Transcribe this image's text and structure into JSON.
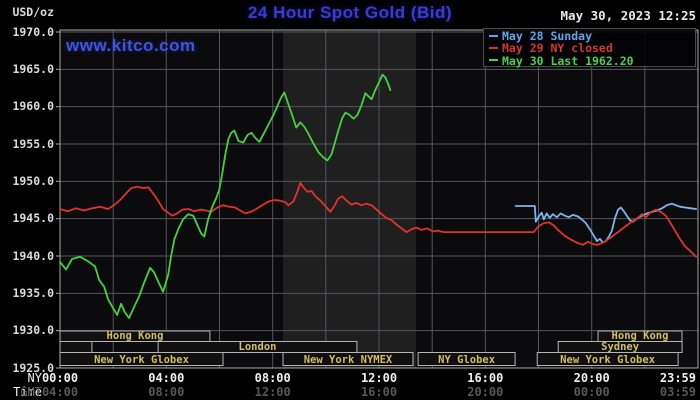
{
  "header": {
    "unit_label": "USD/oz",
    "title": "24 Hour Spot Gold (Bid)",
    "datetime": "May 30, 2023 12:25",
    "watermark": "www.kitco.com"
  },
  "legend": {
    "items": [
      {
        "label": "May 28 Sunday",
        "color": "#5ea6ec"
      },
      {
        "label": "May 29 NY closed",
        "color": "#d2382c"
      },
      {
        "label": "May 30 Last 1962.20",
        "color": "#4cd04c"
      }
    ]
  },
  "axis": {
    "ny_label": "NY Time",
    "gmt_label": "GMT",
    "x_ticks": [
      {
        "h": 0,
        "ny": "00:00",
        "gmt": "04:00"
      },
      {
        "h": 4,
        "ny": "04:00",
        "gmt": "08:00"
      },
      {
        "h": 8,
        "ny": "08:00",
        "gmt": "12:00"
      },
      {
        "h": 12,
        "ny": "12:00",
        "gmt": "16:00"
      },
      {
        "h": 16,
        "ny": "16:00",
        "gmt": "20:00"
      },
      {
        "h": 20,
        "ny": "20:00",
        "gmt": "00:00"
      },
      {
        "h": 23.983,
        "ny": "23:59",
        "gmt": "03:59"
      }
    ]
  },
  "sessions": {
    "rows": [
      [
        {
          "label": "Hong Kong",
          "from": 0,
          "to": 5.64
        },
        {
          "label": "Hong Kong",
          "from": 20.24,
          "to": 23.4
        }
      ],
      [
        {
          "label": "",
          "from": 0,
          "to": 1.2
        },
        {
          "label": "London",
          "from": 3.69,
          "to": 11.17
        },
        {
          "label": "Sydney",
          "from": 18.74,
          "to": 23.4
        }
      ],
      [
        {
          "label": "New York Globex",
          "from": 0,
          "to": 6.13
        },
        {
          "label": "New York NYMEX",
          "from": 8.39,
          "to": 13.28
        },
        {
          "label": "NY Globex",
          "from": 13.47,
          "to": 17.12
        },
        {
          "label": "New York Globex",
          "from": 17.95,
          "to": 23.25
        }
      ]
    ]
  },
  "chart_data": {
    "type": "line",
    "title": "24 Hour Spot Gold (Bid)",
    "ylabel": "USD/oz",
    "ylim": [
      1925,
      1970
    ],
    "xlim_hours": [
      0,
      24
    ],
    "grid": true,
    "legend_position": "top-right",
    "y_ticks": [
      1970,
      1965,
      1960,
      1955,
      1950,
      1945,
      1940,
      1935,
      1930,
      1925
    ],
    "grid_hours": [
      2,
      4,
      6,
      8,
      10,
      12,
      14,
      16,
      18,
      20,
      22
    ],
    "nymex_shade_hours": [
      8.39,
      13.4
    ],
    "series": [
      {
        "name": "May 28 Sunday",
        "color": "#79b6ef",
        "points": [
          [
            17.14,
            1946.7
          ],
          [
            17.86,
            1946.7
          ],
          [
            17.9,
            1944.6
          ],
          [
            18.01,
            1945.3
          ],
          [
            18.12,
            1945.8
          ],
          [
            18.2,
            1944.9
          ],
          [
            18.31,
            1945.7
          ],
          [
            18.42,
            1945.1
          ],
          [
            18.54,
            1945.6
          ],
          [
            18.69,
            1945.2
          ],
          [
            18.84,
            1945.7
          ],
          [
            18.99,
            1945.4
          ],
          [
            19.14,
            1945.2
          ],
          [
            19.29,
            1945.5
          ],
          [
            19.48,
            1945.3
          ],
          [
            19.63,
            1944.9
          ],
          [
            19.78,
            1944.4
          ],
          [
            19.93,
            1943.6
          ],
          [
            20.08,
            1942.7
          ],
          [
            20.2,
            1942.0
          ],
          [
            20.31,
            1942.3
          ],
          [
            20.42,
            1941.8
          ],
          [
            20.53,
            1942.0
          ],
          [
            20.65,
            1942.6
          ],
          [
            20.76,
            1943.4
          ],
          [
            20.87,
            1945.0
          ],
          [
            20.99,
            1946.2
          ],
          [
            21.1,
            1946.5
          ],
          [
            21.21,
            1946.0
          ],
          [
            21.32,
            1945.4
          ],
          [
            21.44,
            1944.8
          ],
          [
            21.55,
            1944.6
          ],
          [
            21.7,
            1945.0
          ],
          [
            21.89,
            1945.4
          ],
          [
            22.08,
            1945.7
          ],
          [
            22.27,
            1945.9
          ],
          [
            22.46,
            1946.1
          ],
          [
            22.65,
            1946.4
          ],
          [
            22.83,
            1946.8
          ],
          [
            23.02,
            1947.0
          ],
          [
            23.17,
            1946.8
          ],
          [
            23.32,
            1946.6
          ],
          [
            23.51,
            1946.5
          ],
          [
            23.7,
            1946.4
          ],
          [
            23.93,
            1946.3
          ]
        ]
      },
      {
        "name": "May 29 NY closed",
        "color": "#df342a",
        "points": [
          [
            0,
            1946.3
          ],
          [
            0.3,
            1946.0
          ],
          [
            0.6,
            1946.4
          ],
          [
            0.9,
            1946.1
          ],
          [
            1.21,
            1946.4
          ],
          [
            1.51,
            1946.6
          ],
          [
            1.81,
            1946.3
          ],
          [
            2.03,
            1946.8
          ],
          [
            2.26,
            1947.5
          ],
          [
            2.49,
            1948.4
          ],
          [
            2.68,
            1949.1
          ],
          [
            2.9,
            1949.3
          ],
          [
            3.13,
            1949.1
          ],
          [
            3.32,
            1949.2
          ],
          [
            3.5,
            1948.4
          ],
          [
            3.69,
            1947.4
          ],
          [
            3.88,
            1946.3
          ],
          [
            4.07,
            1945.8
          ],
          [
            4.22,
            1945.4
          ],
          [
            4.41,
            1945.7
          ],
          [
            4.6,
            1946.2
          ],
          [
            4.82,
            1946.3
          ],
          [
            5.05,
            1946.0
          ],
          [
            5.27,
            1946.2
          ],
          [
            5.5,
            1946.1
          ],
          [
            5.69,
            1945.9
          ],
          [
            5.92,
            1946.5
          ],
          [
            6.14,
            1946.8
          ],
          [
            6.37,
            1946.6
          ],
          [
            6.59,
            1946.5
          ],
          [
            6.78,
            1946.1
          ],
          [
            6.97,
            1945.7
          ],
          [
            7.16,
            1945.9
          ],
          [
            7.38,
            1946.3
          ],
          [
            7.61,
            1946.8
          ],
          [
            7.84,
            1947.3
          ],
          [
            8.06,
            1947.5
          ],
          [
            8.29,
            1947.4
          ],
          [
            8.48,
            1947.2
          ],
          [
            8.59,
            1946.8
          ],
          [
            8.78,
            1947.3
          ],
          [
            8.93,
            1948.6
          ],
          [
            9.04,
            1949.8
          ],
          [
            9.16,
            1949.2
          ],
          [
            9.31,
            1948.6
          ],
          [
            9.46,
            1948.7
          ],
          [
            9.61,
            1948.0
          ],
          [
            9.8,
            1947.4
          ],
          [
            9.98,
            1946.7
          ],
          [
            10.17,
            1945.9
          ],
          [
            10.32,
            1946.7
          ],
          [
            10.47,
            1947.7
          ],
          [
            10.62,
            1948.0
          ],
          [
            10.78,
            1947.4
          ],
          [
            10.96,
            1946.9
          ],
          [
            11.15,
            1947.1
          ],
          [
            11.34,
            1946.8
          ],
          [
            11.53,
            1947.0
          ],
          [
            11.72,
            1946.8
          ],
          [
            11.91,
            1946.2
          ],
          [
            12.1,
            1945.6
          ],
          [
            12.28,
            1945.1
          ],
          [
            12.47,
            1944.8
          ],
          [
            12.66,
            1944.2
          ],
          [
            12.85,
            1943.7
          ],
          [
            13.04,
            1943.2
          ],
          [
            13.23,
            1943.6
          ],
          [
            13.41,
            1943.8
          ],
          [
            13.6,
            1943.5
          ],
          [
            13.83,
            1943.7
          ],
          [
            14.02,
            1943.3
          ],
          [
            14.21,
            1943.4
          ],
          [
            14.43,
            1943.2
          ],
          [
            17.82,
            1943.2
          ],
          [
            18.01,
            1944.0
          ],
          [
            18.2,
            1944.4
          ],
          [
            18.39,
            1944.5
          ],
          [
            18.57,
            1944.1
          ],
          [
            18.76,
            1943.4
          ],
          [
            18.99,
            1942.7
          ],
          [
            19.22,
            1942.2
          ],
          [
            19.44,
            1941.8
          ],
          [
            19.67,
            1941.5
          ],
          [
            19.86,
            1941.9
          ],
          [
            20.05,
            1941.6
          ],
          [
            20.23,
            1941.5
          ],
          [
            20.42,
            1941.8
          ],
          [
            20.61,
            1942.2
          ],
          [
            20.8,
            1942.7
          ],
          [
            20.99,
            1943.2
          ],
          [
            21.17,
            1943.7
          ],
          [
            21.36,
            1944.2
          ],
          [
            21.55,
            1944.7
          ],
          [
            21.74,
            1945.1
          ],
          [
            21.89,
            1945.6
          ],
          [
            22.04,
            1945.2
          ],
          [
            22.23,
            1945.9
          ],
          [
            22.42,
            1946.2
          ],
          [
            22.61,
            1945.9
          ],
          [
            22.79,
            1945.4
          ],
          [
            22.95,
            1944.5
          ],
          [
            23.13,
            1943.4
          ],
          [
            23.32,
            1942.3
          ],
          [
            23.51,
            1941.3
          ],
          [
            23.7,
            1940.7
          ],
          [
            23.93,
            1939.9
          ]
        ]
      },
      {
        "name": "May 30",
        "color": "#46d23c",
        "last": 1962.2,
        "points": [
          [
            0,
            1939.2
          ],
          [
            0.23,
            1938.2
          ],
          [
            0.45,
            1939.6
          ],
          [
            0.75,
            1939.9
          ],
          [
            1.05,
            1939.3
          ],
          [
            1.32,
            1938.6
          ],
          [
            1.47,
            1936.8
          ],
          [
            1.66,
            1935.9
          ],
          [
            1.81,
            1934.2
          ],
          [
            2.0,
            1933.0
          ],
          [
            2.15,
            1932.1
          ],
          [
            2.3,
            1933.6
          ],
          [
            2.45,
            1932.4
          ],
          [
            2.6,
            1931.7
          ],
          [
            2.79,
            1933.2
          ],
          [
            2.98,
            1934.6
          ],
          [
            3.17,
            1936.5
          ],
          [
            3.39,
            1938.4
          ],
          [
            3.54,
            1937.8
          ],
          [
            3.69,
            1936.6
          ],
          [
            3.88,
            1935.2
          ],
          [
            4.07,
            1937.5
          ],
          [
            4.18,
            1940.0
          ],
          [
            4.3,
            1942.2
          ],
          [
            4.45,
            1943.6
          ],
          [
            4.63,
            1944.9
          ],
          [
            4.82,
            1945.6
          ],
          [
            5.01,
            1945.4
          ],
          [
            5.16,
            1944.2
          ],
          [
            5.31,
            1943.0
          ],
          [
            5.43,
            1942.6
          ],
          [
            5.58,
            1945.0
          ],
          [
            5.73,
            1946.6
          ],
          [
            5.88,
            1947.8
          ],
          [
            5.99,
            1948.8
          ],
          [
            6.1,
            1951.0
          ],
          [
            6.22,
            1953.6
          ],
          [
            6.33,
            1955.6
          ],
          [
            6.44,
            1956.5
          ],
          [
            6.56,
            1956.8
          ],
          [
            6.71,
            1955.4
          ],
          [
            6.9,
            1955.2
          ],
          [
            7.05,
            1956.2
          ],
          [
            7.2,
            1956.5
          ],
          [
            7.35,
            1955.8
          ],
          [
            7.5,
            1955.3
          ],
          [
            7.65,
            1956.3
          ],
          [
            7.84,
            1957.6
          ],
          [
            8.03,
            1958.9
          ],
          [
            8.18,
            1960.1
          ],
          [
            8.33,
            1961.3
          ],
          [
            8.44,
            1961.9
          ],
          [
            8.59,
            1960.3
          ],
          [
            8.74,
            1958.8
          ],
          [
            8.89,
            1957.2
          ],
          [
            9.04,
            1957.9
          ],
          [
            9.19,
            1957.3
          ],
          [
            9.34,
            1956.4
          ],
          [
            9.53,
            1955.1
          ],
          [
            9.72,
            1953.9
          ],
          [
            9.91,
            1953.2
          ],
          [
            10.06,
            1952.8
          ],
          [
            10.21,
            1953.6
          ],
          [
            10.32,
            1954.9
          ],
          [
            10.47,
            1956.8
          ],
          [
            10.62,
            1958.5
          ],
          [
            10.74,
            1959.2
          ],
          [
            10.89,
            1958.9
          ],
          [
            11.04,
            1958.4
          ],
          [
            11.19,
            1958.9
          ],
          [
            11.34,
            1960.2
          ],
          [
            11.49,
            1961.8
          ],
          [
            11.6,
            1961.4
          ],
          [
            11.72,
            1961.0
          ],
          [
            11.87,
            1962.3
          ],
          [
            12.02,
            1963.4
          ],
          [
            12.13,
            1964.3
          ],
          [
            12.24,
            1963.9
          ],
          [
            12.36,
            1962.9
          ],
          [
            12.43,
            1962.2
          ]
        ]
      }
    ]
  }
}
